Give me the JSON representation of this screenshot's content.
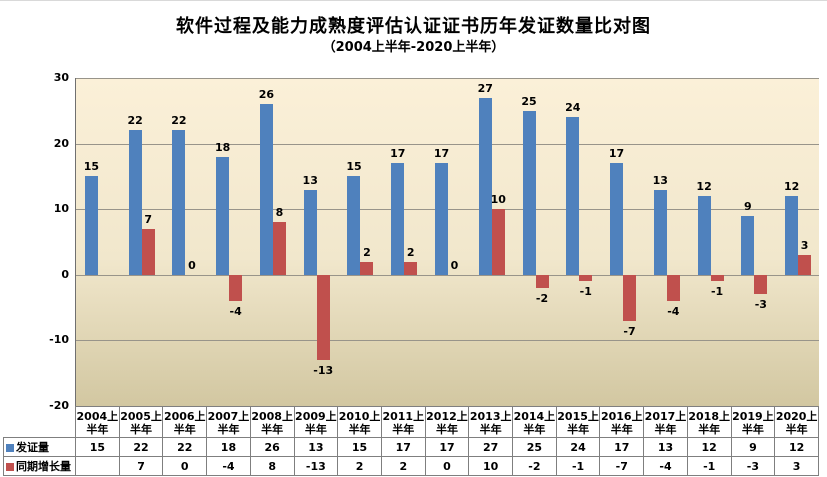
{
  "title": "软件过程及能力成熟度评估认证证书历年发证数量比对图",
  "subtitle": "（2004上半年-2020上半年）",
  "colors": {
    "series_issued": "#4F81BD",
    "series_growth": "#C0504D",
    "plot_bg_top": "#FBF0D8",
    "plot_bg_mid": "#F1E7CC",
    "plot_bg_bottom": "#D2C7A1",
    "gridline": "#98948A",
    "axis_line": "#707070",
    "table_border": "#7F7F7F",
    "label_text": "#000000"
  },
  "chart_data": {
    "type": "bar",
    "title": "软件过程及能力成熟度评估认证证书历年发证数量比对图",
    "subtitle": "（2004上半年-2020上半年）",
    "categories": [
      "2004上半年",
      "2005上半年",
      "2006上半年",
      "2007上半年",
      "2008上半年",
      "2009上半年",
      "2010上半年",
      "2011上半年",
      "2012上半年",
      "2013上半年",
      "2014上半年",
      "2015上半年",
      "2016上半年",
      "2017上半年",
      "2018上半年",
      "2019上半年",
      "2020上半年"
    ],
    "series": [
      {
        "name": "发证量",
        "color": "#4F81BD",
        "values": [
          15,
          22,
          22,
          18,
          26,
          13,
          15,
          17,
          17,
          27,
          25,
          24,
          17,
          13,
          12,
          9,
          12
        ]
      },
      {
        "name": "同期增长量",
        "color": "#C0504D",
        "values": [
          null,
          7,
          0,
          -4,
          8,
          -13,
          2,
          2,
          0,
          10,
          -2,
          -1,
          -7,
          -4,
          -1,
          -3,
          3
        ]
      }
    ],
    "ylim": [
      -20,
      30
    ],
    "yticks": [
      30,
      20,
      10,
      0,
      -10,
      -20
    ],
    "grid": true,
    "data_labels": true,
    "legend_position": "data-table-row-headers",
    "xlabel": "",
    "ylabel": ""
  }
}
